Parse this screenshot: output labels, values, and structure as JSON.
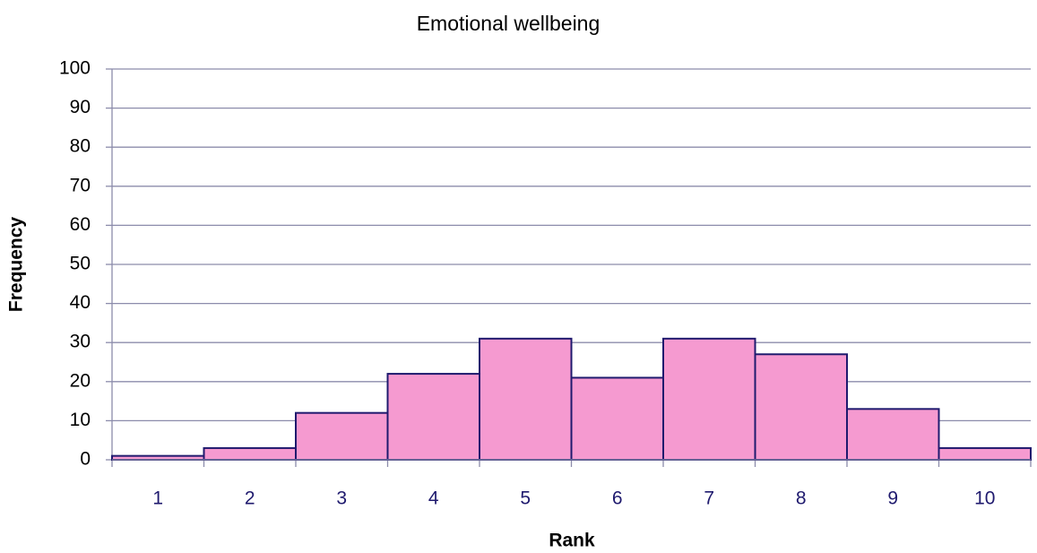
{
  "chart_data": {
    "type": "bar",
    "title": "Emotional wellbeing",
    "xlabel": "Rank",
    "ylabel": "Frequency",
    "categories": [
      "1",
      "2",
      "3",
      "4",
      "5",
      "6",
      "7",
      "8",
      "9",
      "10"
    ],
    "values": [
      1,
      3,
      12,
      22,
      31,
      21,
      31,
      27,
      13,
      3
    ],
    "color": "#f59ad0",
    "edgecolor": "#1f1a6e",
    "ylim": [
      0,
      100
    ],
    "yticks": [
      0,
      10,
      20,
      30,
      40,
      50,
      60,
      70,
      80,
      90,
      100
    ],
    "grid": true
  }
}
